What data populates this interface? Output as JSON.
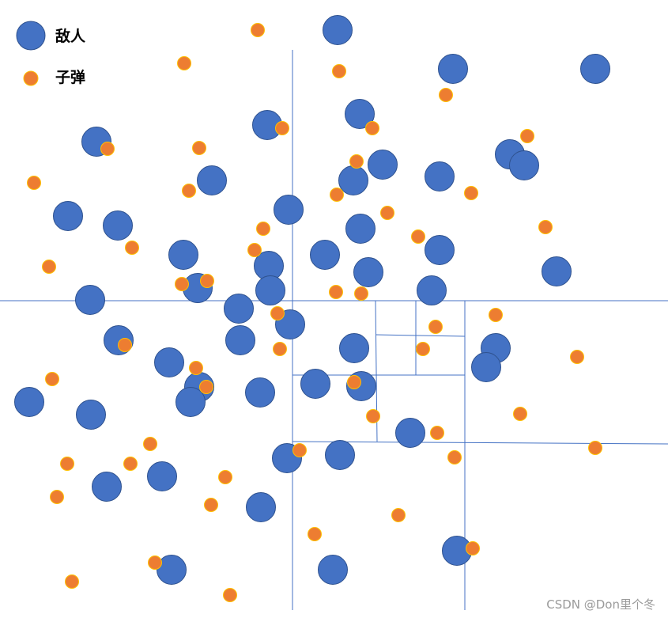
{
  "colors": {
    "enemy_fill": "#4472c4",
    "enemy_stroke": "#2f528f",
    "bullet_fill": "#ed7d31",
    "bullet_stroke": "#ffc000",
    "divider": "#4472c4"
  },
  "legend": {
    "enemy_label": "敌人",
    "bullet_label": "子弹"
  },
  "watermark": "CSDN @Don里个冬",
  "chart_data": {
    "type": "scatter",
    "series": [
      {
        "name": "敌人",
        "points": [
          [
            427,
            38
          ],
          [
            573,
            87
          ],
          [
            753,
            87
          ],
          [
            455,
            144
          ],
          [
            338,
            158
          ],
          [
            122,
            179
          ],
          [
            645,
            195
          ],
          [
            663,
            209
          ],
          [
            484,
            208
          ],
          [
            447,
            228
          ],
          [
            556,
            223
          ],
          [
            268,
            228
          ],
          [
            86,
            273
          ],
          [
            149,
            285
          ],
          [
            365,
            265
          ],
          [
            456,
            289
          ],
          [
            556,
            316
          ],
          [
            232,
            322
          ],
          [
            411,
            322
          ],
          [
            340,
            336
          ],
          [
            466,
            344
          ],
          [
            704,
            343
          ],
          [
            250,
            364
          ],
          [
            342,
            367
          ],
          [
            546,
            367
          ],
          [
            114,
            379
          ],
          [
            302,
            390
          ],
          [
            367,
            410
          ],
          [
            150,
            430
          ],
          [
            304,
            430
          ],
          [
            448,
            440
          ],
          [
            627,
            440
          ],
          [
            615,
            464
          ],
          [
            214,
            458
          ],
          [
            252,
            489
          ],
          [
            399,
            485
          ],
          [
            457,
            488
          ],
          [
            37,
            508
          ],
          [
            241,
            508
          ],
          [
            329,
            496
          ],
          [
            115,
            524
          ],
          [
            519,
            547
          ],
          [
            363,
            579
          ],
          [
            430,
            575
          ],
          [
            135,
            615
          ],
          [
            205,
            602
          ],
          [
            330,
            641
          ],
          [
            578,
            696
          ],
          [
            217,
            720
          ],
          [
            421,
            720
          ]
        ]
      },
      {
        "name": "子弹",
        "points": [
          [
            326,
            38
          ],
          [
            233,
            80
          ],
          [
            429,
            90
          ],
          [
            564,
            120
          ],
          [
            357,
            162
          ],
          [
            471,
            162
          ],
          [
            667,
            172
          ],
          [
            136,
            188
          ],
          [
            252,
            187
          ],
          [
            451,
            204
          ],
          [
            43,
            231
          ],
          [
            239,
            241
          ],
          [
            426,
            246
          ],
          [
            596,
            244
          ],
          [
            490,
            269
          ],
          [
            333,
            289
          ],
          [
            529,
            299
          ],
          [
            690,
            287
          ],
          [
            167,
            313
          ],
          [
            322,
            316
          ],
          [
            62,
            337
          ],
          [
            262,
            355
          ],
          [
            230,
            359
          ],
          [
            425,
            369
          ],
          [
            457,
            371
          ],
          [
            351,
            396
          ],
          [
            627,
            398
          ],
          [
            551,
            413
          ],
          [
            158,
            436
          ],
          [
            354,
            441
          ],
          [
            535,
            441
          ],
          [
            730,
            451
          ],
          [
            248,
            465
          ],
          [
            66,
            479
          ],
          [
            261,
            489
          ],
          [
            448,
            483
          ],
          [
            472,
            526
          ],
          [
            658,
            523
          ],
          [
            553,
            547
          ],
          [
            190,
            561
          ],
          [
            379,
            569
          ],
          [
            753,
            566
          ],
          [
            575,
            578
          ],
          [
            85,
            586
          ],
          [
            165,
            586
          ],
          [
            285,
            603
          ],
          [
            72,
            628
          ],
          [
            267,
            638
          ],
          [
            504,
            651
          ],
          [
            398,
            675
          ],
          [
            598,
            693
          ],
          [
            196,
            711
          ],
          [
            91,
            735
          ],
          [
            291,
            752
          ]
        ]
      }
    ],
    "dividers": [
      [
        [
          0,
          380
        ],
        [
          845,
          380
        ]
      ],
      [
        [
          370,
          63
        ],
        [
          370,
          771
        ]
      ],
      [
        [
          588,
          380
        ],
        [
          588,
          771
        ]
      ],
      [
        [
          370,
          558
        ],
        [
          845,
          561
        ]
      ],
      [
        [
          475,
          380
        ],
        [
          477,
          558
        ]
      ],
      [
        [
          370,
          474
        ],
        [
          588,
          474
        ]
      ],
      [
        [
          526,
          380
        ],
        [
          526,
          474
        ]
      ],
      [
        [
          475,
          423
        ],
        [
          588,
          425
        ]
      ]
    ]
  }
}
